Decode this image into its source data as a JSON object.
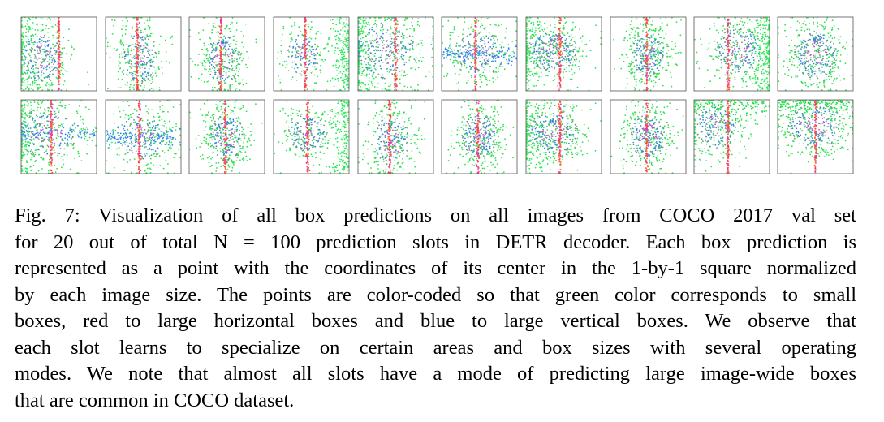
{
  "figure": {
    "grid": {
      "rows": 2,
      "cols": 10
    },
    "colors": {
      "small_boxes": "#22e64a",
      "large_horizontal_boxes": "#ff3a3a",
      "large_vertical_boxes": "#3a6bff",
      "panel_border": "#555555"
    },
    "panels": [
      {
        "slot": 1,
        "mode": "left-blob-vline"
      },
      {
        "slot": 2,
        "mode": "vline-cloud"
      },
      {
        "slot": 3,
        "mode": "vline-cloud"
      },
      {
        "slot": 4,
        "mode": "vline-right-strip"
      },
      {
        "slot": 5,
        "mode": "left-wide-cloud"
      },
      {
        "slot": 6,
        "mode": "hband-center"
      },
      {
        "slot": 7,
        "mode": "left-dense-blob"
      },
      {
        "slot": 8,
        "mode": "center-cloud"
      },
      {
        "slot": 9,
        "mode": "right-dense"
      },
      {
        "slot": 10,
        "mode": "center-oval"
      },
      {
        "slot": 11,
        "mode": "left-wide-hband"
      },
      {
        "slot": 12,
        "mode": "hband-center"
      },
      {
        "slot": 13,
        "mode": "center-cloud"
      },
      {
        "slot": 14,
        "mode": "right-strip-vline"
      },
      {
        "slot": 15,
        "mode": "vline-cloud"
      },
      {
        "slot": 16,
        "mode": "center-cloud"
      },
      {
        "slot": 17,
        "mode": "left-dense-blob"
      },
      {
        "slot": 18,
        "mode": "center-cloud"
      },
      {
        "slot": 19,
        "mode": "left-top-vline"
      },
      {
        "slot": 20,
        "mode": "top-wide-cloud"
      }
    ]
  },
  "caption": {
    "lines": [
      "Fig. 7: Visualization of all box predictions on all images from COCO 2017 val set",
      "for 20 out of total N = 100 prediction slots in DETR decoder. Each box prediction is",
      "represented as a point with the coordinates of its center in the 1-by-1 square normalized",
      "by each image size. The points are color-coded so that green color corresponds to small",
      "boxes, red to large horizontal boxes and blue to large vertical boxes. We observe that",
      "each slot learns to specialize on certain areas and box sizes with several operating",
      "modes. We note that almost all slots have a mode of predicting large image-wide boxes",
      "that are common in COCO dataset."
    ]
  }
}
